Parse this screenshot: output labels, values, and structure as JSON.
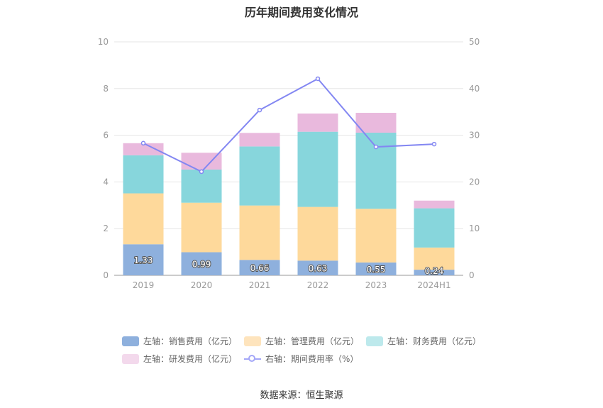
{
  "chart_data": {
    "type": "bar",
    "title": "历年期间费用变化情况",
    "categories": [
      "2019",
      "2020",
      "2021",
      "2022",
      "2023",
      "2024H1"
    ],
    "left_axis": {
      "ylim": [
        0,
        10
      ],
      "ticks": [
        "0",
        "2",
        "4",
        "6",
        "8",
        "10"
      ]
    },
    "right_axis": {
      "ylim": [
        0,
        50
      ],
      "ticks": [
        "0",
        "10",
        "20",
        "30",
        "40",
        "50"
      ]
    },
    "series": [
      {
        "name": "左轴：销售费用（亿元）",
        "type": "bar",
        "axis": "left",
        "color": "#8eb0dd",
        "values": [
          1.33,
          0.99,
          0.66,
          0.63,
          0.55,
          0.24
        ],
        "labels": [
          "1.33",
          "0.99",
          "0.66",
          "0.63",
          "0.55",
          "0.24"
        ]
      },
      {
        "name": "左轴：管理费用（亿元）",
        "type": "bar",
        "axis": "left",
        "color": "#fed99b",
        "values": [
          2.18,
          2.12,
          2.33,
          2.3,
          2.3,
          0.95
        ]
      },
      {
        "name": "左轴：财务费用（亿元）",
        "type": "bar",
        "axis": "left",
        "color": "#87d6dc",
        "values": [
          1.63,
          1.42,
          2.53,
          3.22,
          3.26,
          1.68
        ]
      },
      {
        "name": "左轴：研发费用（亿元）",
        "type": "bar",
        "axis": "left",
        "color": "#e9b9dd",
        "values": [
          0.52,
          0.72,
          0.58,
          0.78,
          0.85,
          0.33
        ]
      },
      {
        "name": "右轴：期间费用率（%）",
        "type": "line",
        "axis": "right",
        "color": "#8387f2",
        "values": [
          28.3,
          22.2,
          35.4,
          42.1,
          27.5,
          28.1
        ]
      }
    ],
    "legend_position": "bottom",
    "grid": true
  },
  "legend": {
    "items": [
      {
        "label": "左轴：销售费用（亿元）",
        "color": "#8eb0dd"
      },
      {
        "label": "左轴：管理费用（亿元）",
        "color": "#fee4bd"
      },
      {
        "label": "左轴：财务费用（亿元）",
        "color": "#bde9ec"
      },
      {
        "label": "左轴：研发费用（亿元）",
        "color": "#f3d9ec"
      },
      {
        "label": "右轴：期间费用率（%）",
        "color": "#a4a7f8"
      }
    ]
  },
  "source": "数据来源：恒生聚源"
}
